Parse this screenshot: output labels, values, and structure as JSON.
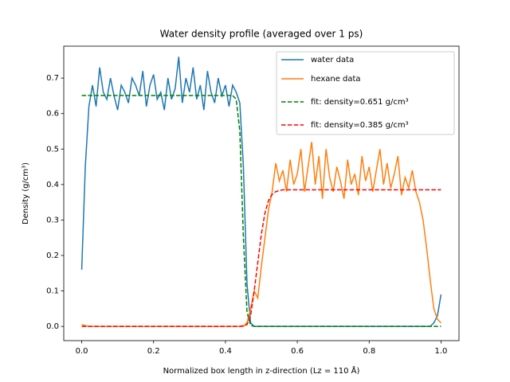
{
  "chart_data": {
    "type": "line",
    "title": "Water density profile (averaged over 1 ps)",
    "x_label": "Normalized box length in z-direction (Lz = 110 Å)",
    "y_label": "Density (g/cm³)",
    "x": [
      0,
      0.01,
      0.02,
      0.03,
      0.04,
      0.05,
      0.06,
      0.07,
      0.08,
      0.09,
      0.1,
      0.11,
      0.12,
      0.13,
      0.14,
      0.15,
      0.16,
      0.17,
      0.18,
      0.19,
      0.2,
      0.21,
      0.22,
      0.23,
      0.24,
      0.25,
      0.26,
      0.27,
      0.28,
      0.29,
      0.3,
      0.31,
      0.32,
      0.33,
      0.34,
      0.35,
      0.36,
      0.37,
      0.38,
      0.39,
      0.4,
      0.41,
      0.42,
      0.43,
      0.44,
      0.45,
      0.46,
      0.47,
      0.48,
      0.49,
      0.5,
      0.51,
      0.52,
      0.53,
      0.54,
      0.55,
      0.56,
      0.57,
      0.58,
      0.59,
      0.6,
      0.61,
      0.62,
      0.63,
      0.64,
      0.65,
      0.66,
      0.67,
      0.68,
      0.69,
      0.7,
      0.71,
      0.72,
      0.73,
      0.74,
      0.75,
      0.76,
      0.77,
      0.78,
      0.79,
      0.8,
      0.81,
      0.82,
      0.83,
      0.84,
      0.85,
      0.86,
      0.87,
      0.88,
      0.89,
      0.9,
      0.91,
      0.92,
      0.93,
      0.94,
      0.95,
      0.96,
      0.97,
      0.98,
      0.99,
      1
    ],
    "series": [
      {
        "name": "water data",
        "color": "#1f77b4",
        "linestyle": "solid",
        "values": [
          0.16,
          0.45,
          0.62,
          0.68,
          0.62,
          0.73,
          0.66,
          0.64,
          0.7,
          0.65,
          0.61,
          0.68,
          0.66,
          0.63,
          0.7,
          0.68,
          0.65,
          0.72,
          0.62,
          0.68,
          0.71,
          0.64,
          0.66,
          0.61,
          0.7,
          0.64,
          0.67,
          0.76,
          0.63,
          0.7,
          0.66,
          0.73,
          0.64,
          0.68,
          0.61,
          0.72,
          0.66,
          0.63,
          0.7,
          0.65,
          0.68,
          0.62,
          0.68,
          0.66,
          0.63,
          0.45,
          0.12,
          0.01,
          0,
          0,
          0,
          0,
          0,
          0,
          0,
          0,
          0,
          0,
          0,
          0,
          0,
          0,
          0,
          0,
          0,
          0,
          0,
          0,
          0,
          0,
          0,
          0,
          0,
          0,
          0,
          0,
          0,
          0,
          0,
          0,
          0,
          0,
          0,
          0,
          0,
          0,
          0,
          0,
          0,
          0,
          0,
          0,
          0,
          0,
          0,
          0,
          0,
          0,
          0.01,
          0.03,
          0.09
        ]
      },
      {
        "name": "hexane data",
        "color": "#ff7f0e",
        "linestyle": "solid",
        "values": [
          0.005,
          0.002,
          0,
          0,
          0,
          0,
          0,
          0,
          0,
          0,
          0,
          0,
          0,
          0,
          0,
          0,
          0,
          0,
          0,
          0,
          0,
          0,
          0,
          0,
          0,
          0,
          0,
          0,
          0,
          0,
          0,
          0,
          0,
          0,
          0,
          0,
          0,
          0,
          0,
          0,
          0,
          0,
          0,
          0,
          0,
          0,
          0.01,
          0.05,
          0.1,
          0.08,
          0.17,
          0.25,
          0.33,
          0.38,
          0.46,
          0.41,
          0.44,
          0.38,
          0.47,
          0.4,
          0.43,
          0.5,
          0.38,
          0.45,
          0.52,
          0.4,
          0.48,
          0.36,
          0.5,
          0.42,
          0.38,
          0.45,
          0.41,
          0.36,
          0.47,
          0.4,
          0.43,
          0.37,
          0.48,
          0.41,
          0.45,
          0.38,
          0.44,
          0.5,
          0.4,
          0.46,
          0.39,
          0.43,
          0.48,
          0.37,
          0.42,
          0.39,
          0.44,
          0.38,
          0.35,
          0.3,
          0.22,
          0.13,
          0.05,
          0.02,
          0.01
        ]
      },
      {
        "name": "fit: density=0.651 g/cm³",
        "color": "#008000",
        "linestyle": "dashed",
        "values": [
          0.651,
          0.651,
          0.651,
          0.651,
          0.651,
          0.651,
          0.651,
          0.651,
          0.651,
          0.651,
          0.651,
          0.651,
          0.651,
          0.651,
          0.651,
          0.651,
          0.651,
          0.651,
          0.651,
          0.651,
          0.651,
          0.651,
          0.651,
          0.651,
          0.651,
          0.651,
          0.651,
          0.651,
          0.651,
          0.651,
          0.651,
          0.651,
          0.651,
          0.651,
          0.651,
          0.651,
          0.651,
          0.651,
          0.651,
          0.651,
          0.651,
          0.651,
          0.651,
          0.64,
          0.55,
          0.25,
          0.04,
          0.003,
          0,
          0,
          0,
          0,
          0,
          0,
          0,
          0,
          0,
          0,
          0,
          0,
          0,
          0,
          0,
          0,
          0,
          0,
          0,
          0,
          0,
          0,
          0,
          0,
          0,
          0,
          0,
          0,
          0,
          0,
          0,
          0,
          0,
          0,
          0,
          0,
          0,
          0,
          0,
          0,
          0,
          0,
          0,
          0,
          0,
          0,
          0,
          0,
          0,
          0,
          0,
          0,
          0
        ]
      },
      {
        "name": "fit: density=0.385 g/cm³",
        "color": "#ff0000",
        "linestyle": "dashed",
        "values": [
          0,
          0,
          0,
          0,
          0,
          0,
          0,
          0,
          0,
          0,
          0,
          0,
          0,
          0,
          0,
          0,
          0,
          0,
          0,
          0,
          0,
          0,
          0,
          0,
          0,
          0,
          0,
          0,
          0,
          0,
          0,
          0,
          0,
          0,
          0,
          0,
          0,
          0,
          0,
          0,
          0,
          0,
          0,
          0,
          0,
          0.002,
          0.005,
          0.03,
          0.1,
          0.18,
          0.26,
          0.32,
          0.355,
          0.372,
          0.38,
          0.383,
          0.385,
          0.385,
          0.385,
          0.385,
          0.385,
          0.385,
          0.385,
          0.385,
          0.385,
          0.385,
          0.385,
          0.385,
          0.385,
          0.385,
          0.385,
          0.385,
          0.385,
          0.385,
          0.385,
          0.385,
          0.385,
          0.385,
          0.385,
          0.385,
          0.385,
          0.385,
          0.385,
          0.385,
          0.385,
          0.385,
          0.385,
          0.385,
          0.385,
          0.385,
          0.385,
          0.385,
          0.385,
          0.385,
          0.385,
          0.385,
          0.385,
          0.385,
          0.385,
          0.385,
          0.385
        ]
      }
    ],
    "xlim": [
      -0.05,
      1.05
    ],
    "ylim": [
      -0.04,
      0.79
    ],
    "xticks": [
      {
        "value": 0,
        "label": "0.0"
      },
      0.2,
      0.4,
      0.6,
      0.8,
      {
        "value": 1,
        "label": "1.0"
      }
    ],
    "yticks": [
      {
        "value": 0,
        "label": "0.0"
      },
      0.1,
      0.2,
      0.3,
      0.4,
      0.5,
      0.6,
      0.7
    ],
    "grid": false,
    "legend": "upper right"
  }
}
